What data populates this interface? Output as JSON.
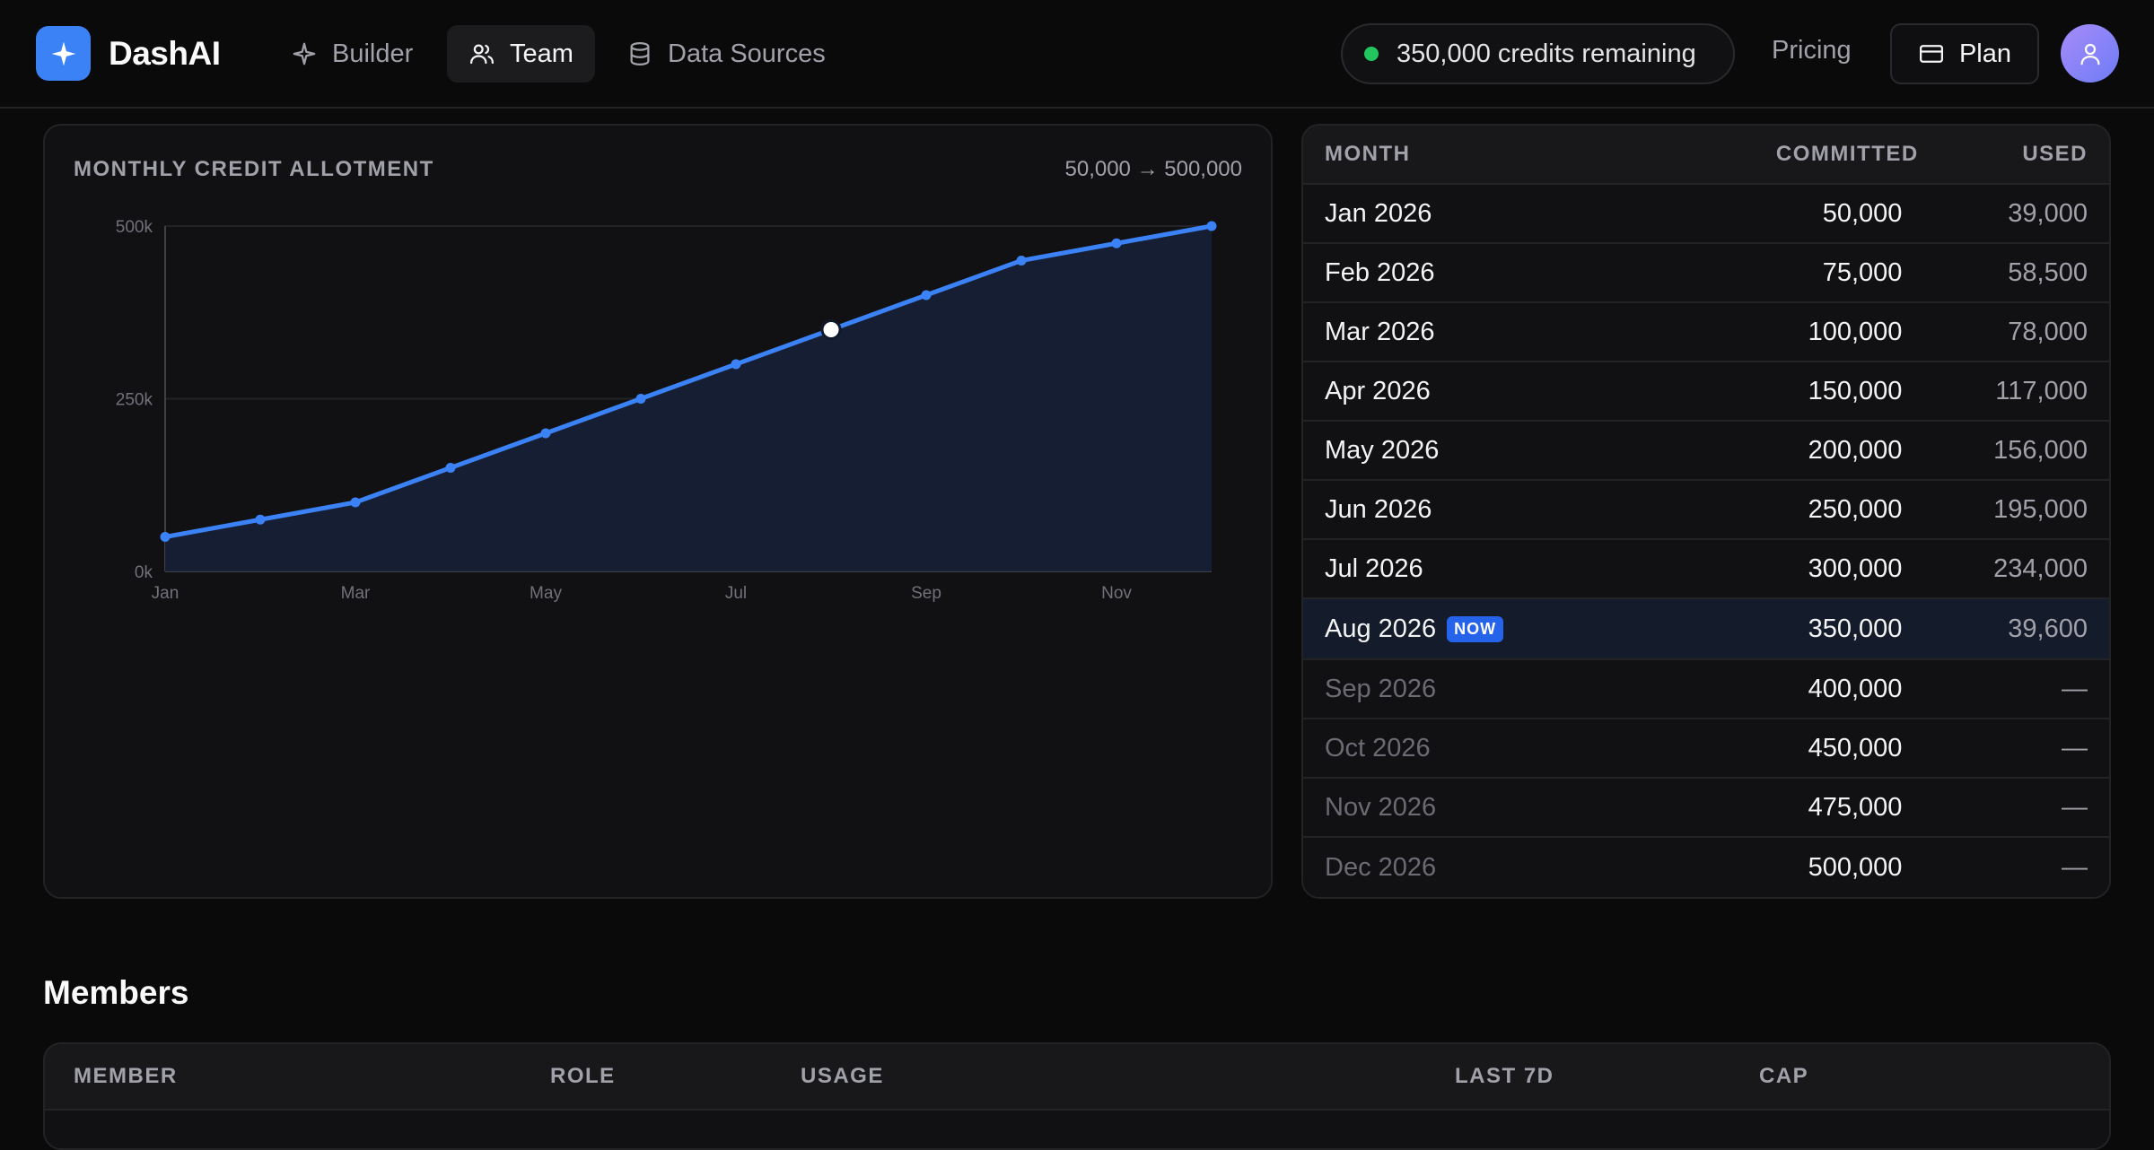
{
  "app": {
    "name": "DashAI",
    "logo_icon": "sparkle-icon",
    "accent": "#3b82f6"
  },
  "nav": {
    "items": [
      {
        "label": "Builder",
        "icon": "sparkle-outline-icon",
        "active": false
      },
      {
        "label": "Team",
        "icon": "users-icon",
        "active": true
      },
      {
        "label": "Data Sources",
        "icon": "database-icon",
        "active": false
      }
    ]
  },
  "header": {
    "credits": "350,000 credits remaining",
    "credits_status_color": "#22c55e",
    "pricing": "Pricing",
    "plan": "Plan"
  },
  "chart_card": {
    "title": "MONTHLY CREDIT ALLOTMENT",
    "range": "50,000 → 500,000"
  },
  "chart_data": {
    "type": "area",
    "x": [
      "Jan",
      "Feb",
      "Mar",
      "Apr",
      "May",
      "Jun",
      "Jul",
      "Aug",
      "Sep",
      "Oct",
      "Nov",
      "Dec"
    ],
    "x_tick_labels": [
      "Jan",
      "Mar",
      "May",
      "Jul",
      "Sep",
      "Nov"
    ],
    "series": [
      {
        "values": [
          50000,
          75000,
          100000,
          150000,
          200000,
          250000,
          300000,
          350000,
          400000,
          450000,
          475000,
          500000
        ],
        "color": "#3b82f6"
      }
    ],
    "highlight_index": 7,
    "ylim": [
      0,
      500000
    ],
    "y_ticks": [
      0,
      250000,
      500000
    ],
    "y_tick_labels": [
      "0k",
      "250k",
      "500k"
    ],
    "grid": true
  },
  "months_table": {
    "headers": {
      "month": "MONTH",
      "committed": "COMMITTED",
      "used": "USED"
    },
    "now_badge": "NOW",
    "rows": [
      {
        "month": "Jan 2026",
        "committed": "50,000",
        "used": "39,000"
      },
      {
        "month": "Feb 2026",
        "committed": "75,000",
        "used": "58,500"
      },
      {
        "month": "Mar 2026",
        "committed": "100,000",
        "used": "78,000"
      },
      {
        "month": "Apr 2026",
        "committed": "150,000",
        "used": "117,000"
      },
      {
        "month": "May 2026",
        "committed": "200,000",
        "used": "156,000"
      },
      {
        "month": "Jun 2026",
        "committed": "250,000",
        "used": "195,000"
      },
      {
        "month": "Jul 2026",
        "committed": "300,000",
        "used": "234,000"
      },
      {
        "month": "Aug 2026",
        "committed": "350,000",
        "used": "39,600"
      },
      {
        "month": "Sep 2026",
        "committed": "400,000",
        "used": "—"
      },
      {
        "month": "Oct 2026",
        "committed": "450,000",
        "used": "—"
      },
      {
        "month": "Nov 2026",
        "committed": "475,000",
        "used": "—"
      },
      {
        "month": "Dec 2026",
        "committed": "500,000",
        "used": "—"
      }
    ]
  },
  "members": {
    "title": "Members",
    "headers": {
      "member": "MEMBER",
      "role": "ROLE",
      "usage": "USAGE",
      "last7d": "LAST 7D",
      "cap": "CAP"
    }
  }
}
